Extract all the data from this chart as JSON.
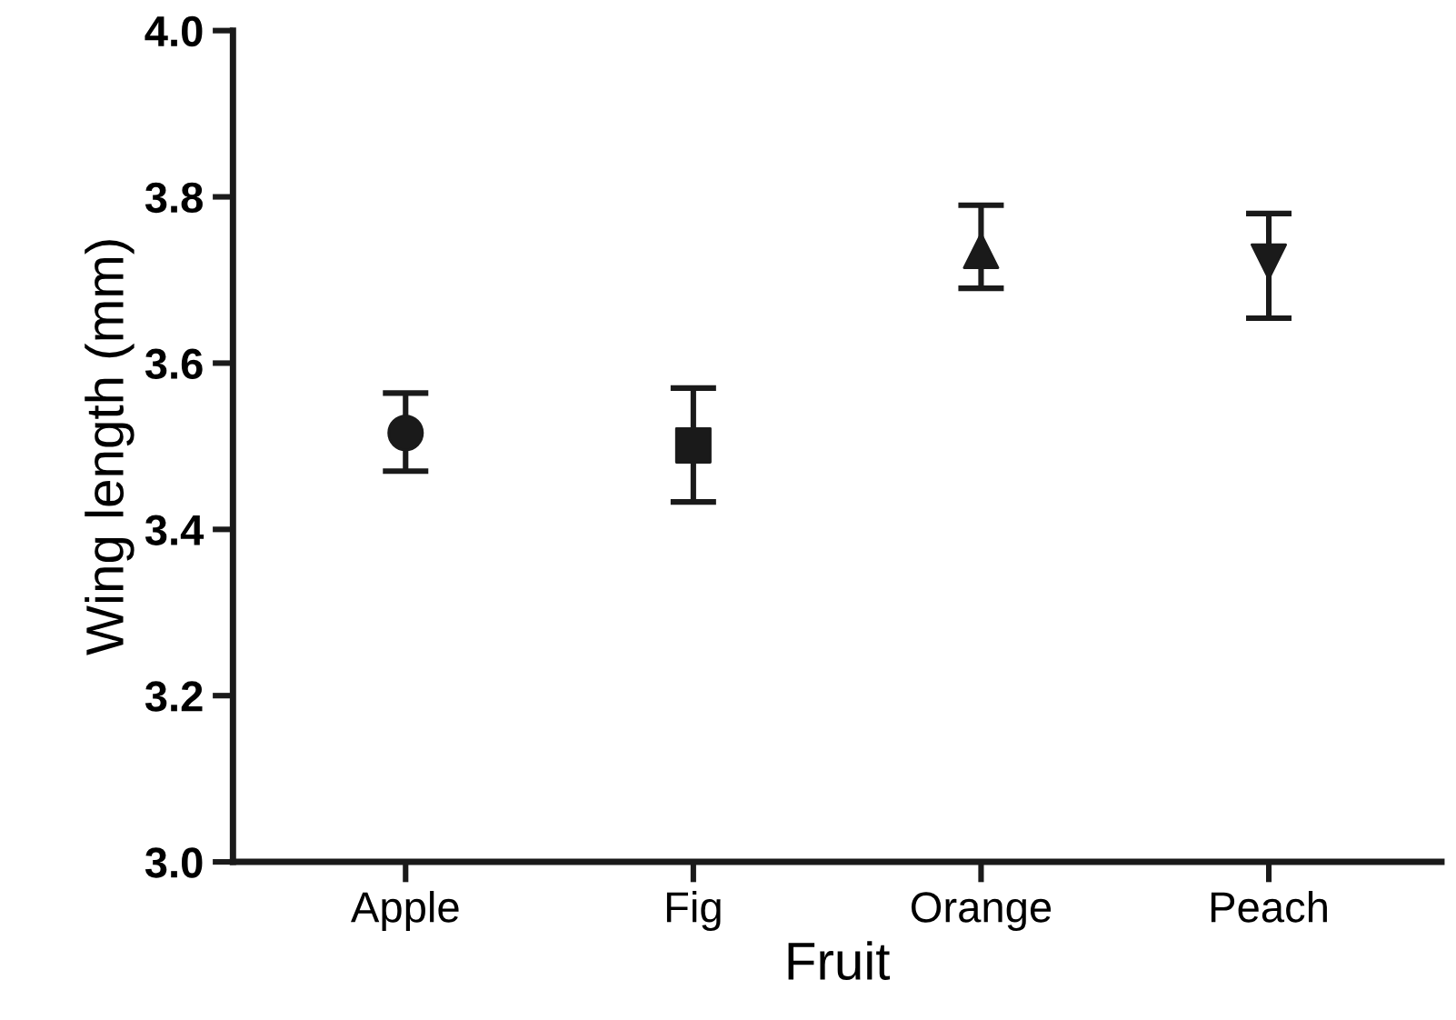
{
  "chart_data": {
    "type": "scatter",
    "xlabel": "Fruit",
    "ylabel": "Wing length (mm)",
    "categories": [
      "Apple",
      "Fig",
      "Orange",
      "Peach"
    ],
    "series": [
      {
        "x": [
          "Apple"
        ],
        "values": [
          3.516
        ],
        "errors": [
          [
            3.47,
            3.564
          ]
        ],
        "marker": "circle",
        "color": "#1a1a1a"
      },
      {
        "x": [
          "Fig"
        ],
        "values": [
          3.501
        ],
        "errors": [
          [
            3.433,
            3.57
          ]
        ],
        "marker": "square",
        "color": "#1a1a1a"
      },
      {
        "x": [
          "Orange"
        ],
        "values": [
          3.735
        ],
        "errors": [
          [
            3.69,
            3.79
          ]
        ],
        "marker": "triangle",
        "color": "#1a1a1a"
      },
      {
        "x": [
          "Peach"
        ],
        "values": [
          3.722
        ],
        "errors": [
          [
            3.654,
            3.78
          ]
        ],
        "marker": "triangle-down",
        "color": "#1a1a1a"
      }
    ],
    "ylim": [
      3.0,
      4.0
    ],
    "yticks": [
      {
        "value": 3,
        "label": "3.0"
      },
      3.2,
      3.4,
      3.6,
      3.8,
      {
        "value": 4,
        "label": "4.0"
      }
    ],
    "grid": false,
    "legend": false
  }
}
